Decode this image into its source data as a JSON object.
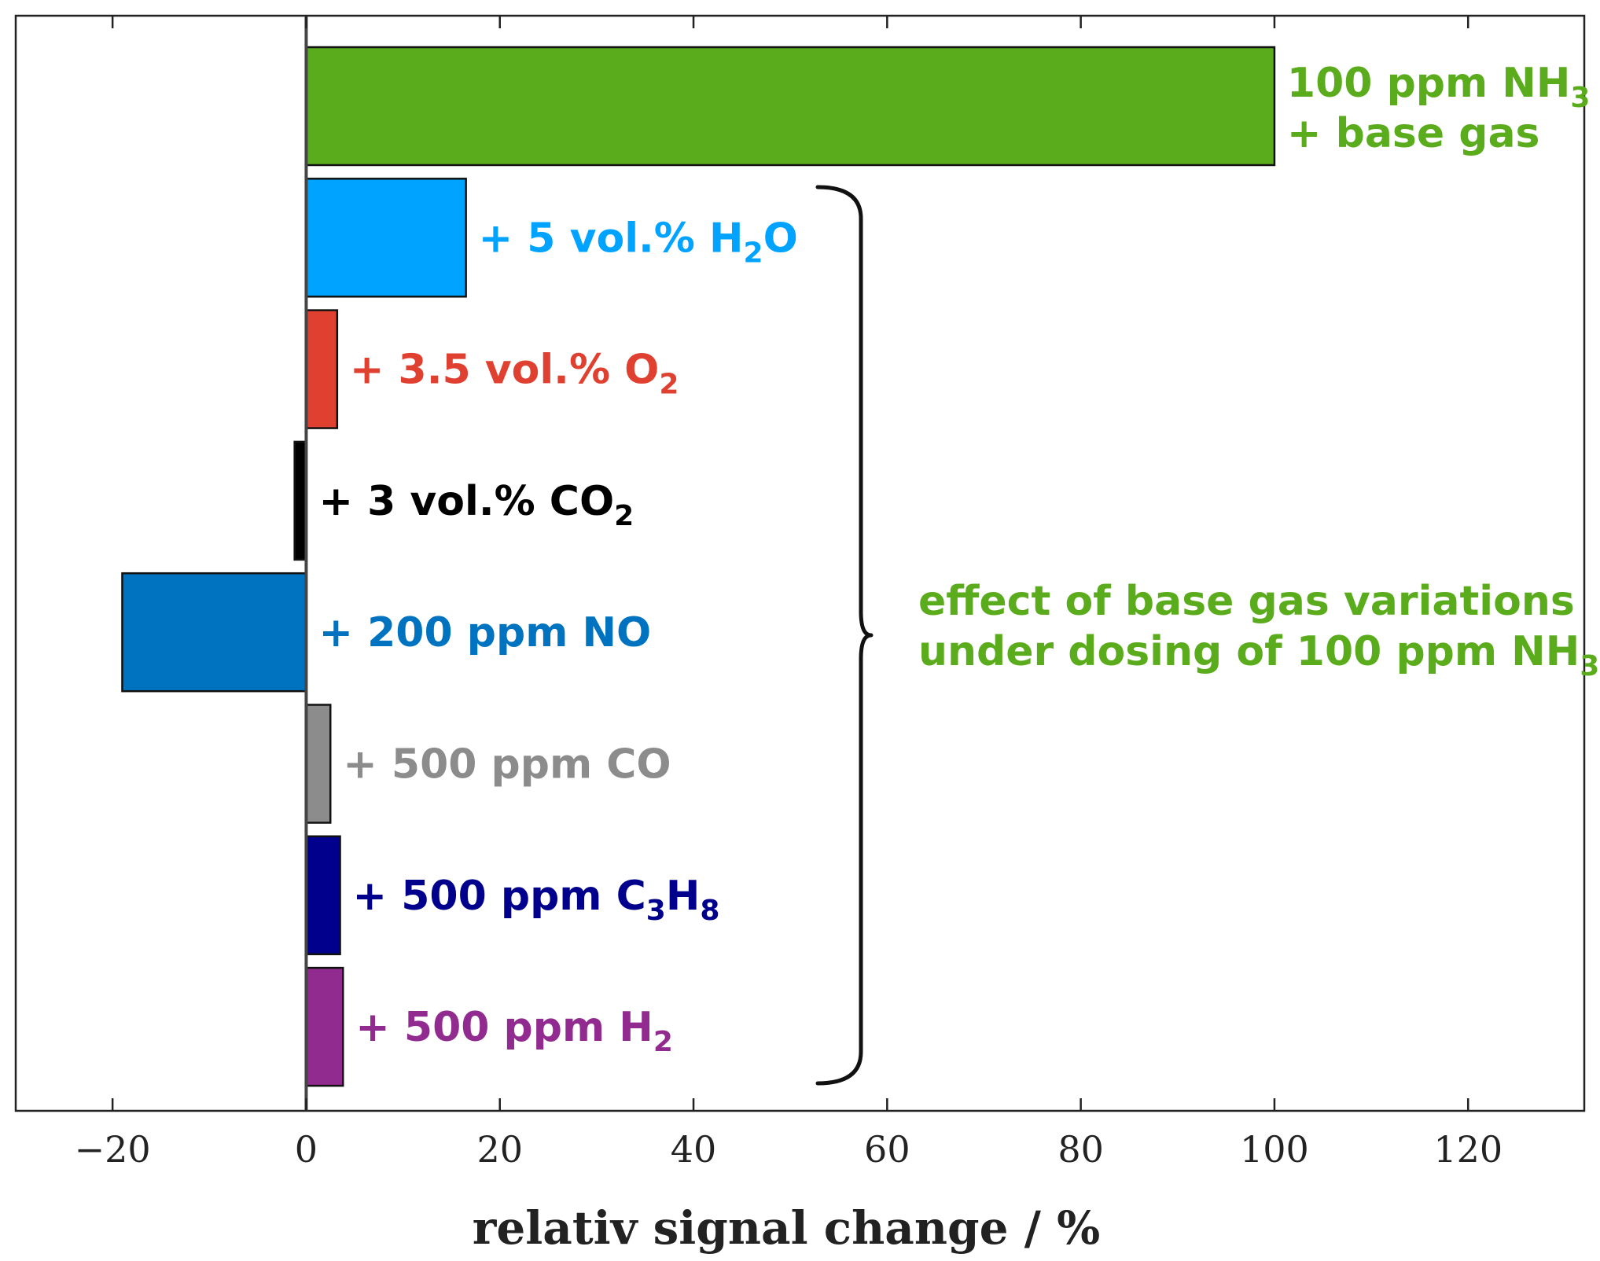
{
  "chart_data": {
    "type": "bar",
    "orientation": "horizontal",
    "title": "",
    "xlabel": "relativ signal change / %",
    "ylabel": "",
    "xlim": [
      -30,
      132
    ],
    "xticks": [
      -20,
      0,
      20,
      40,
      60,
      80,
      100,
      120
    ],
    "xtick_labels": [
      "−20",
      "0",
      "20",
      "40",
      "60",
      "80",
      "100",
      "120"
    ],
    "grid": false,
    "categories": [
      "100 ppm NH3 + base gas",
      "+ 5 vol.% H2O",
      "+ 3.5 vol.% O2",
      "+ 3 vol.% CO2",
      "+ 200 ppm NO",
      "+ 500 ppm CO",
      "+ 500 ppm C3H8",
      "+ 500 ppm H2"
    ],
    "values": [
      100,
      16.5,
      3.2,
      -1.2,
      -19,
      2.5,
      3.5,
      3.8
    ],
    "colors": [
      "#5aac1c",
      "#00a3ff",
      "#e04030",
      "#000000",
      "#0073c0",
      "#8c8c8c",
      "#00008c",
      "#922b8f"
    ],
    "label_parts": [
      [
        [
          "100 ppm NH",
          "n"
        ],
        [
          "3",
          "sub"
        ]
      ],
      [
        [
          "+ 5 vol.% H",
          "n"
        ],
        [
          "2",
          "sub"
        ],
        [
          "O",
          "n"
        ]
      ],
      [
        [
          "+ 3.5 vol.% O",
          "n"
        ],
        [
          "2",
          "sub"
        ]
      ],
      [
        [
          "+ 3 vol.% CO",
          "n"
        ],
        [
          "2",
          "sub"
        ]
      ],
      [
        [
          "+ 200 ppm NO",
          "n"
        ]
      ],
      [
        [
          "+ 500 ppm CO",
          "n"
        ]
      ],
      [
        [
          "+ 500 ppm C",
          "n"
        ],
        [
          "3",
          "sub"
        ],
        [
          "H",
          "n"
        ],
        [
          "8",
          "sub"
        ]
      ],
      [
        [
          "+ 500 ppm H",
          "n"
        ],
        [
          "2",
          "sub"
        ]
      ]
    ],
    "first_bar_second_line": "+ base gas",
    "annotation": {
      "line1": "effect of base gas variations",
      "line2_parts": [
        [
          "under dosing of 100 ppm NH",
          "n"
        ],
        [
          "3",
          "sub"
        ]
      ],
      "color": "#5aac1c"
    }
  }
}
